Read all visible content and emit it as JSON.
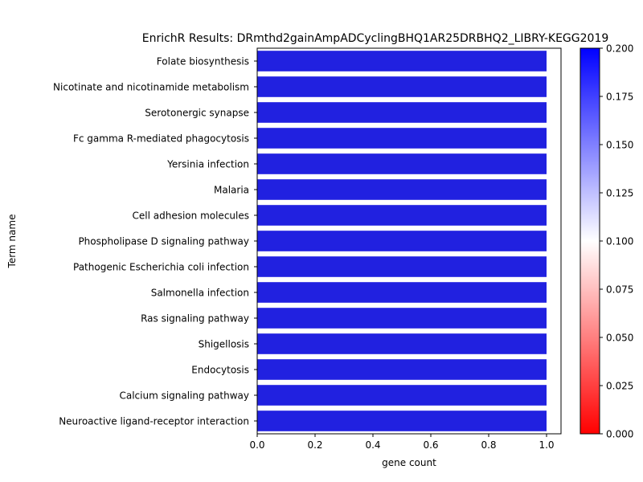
{
  "chart_data": {
    "type": "bar",
    "orientation": "horizontal",
    "title": "EnrichR Results: DRmthd2gainAmpADCyclingBHQ1AR25DRBHQ2_LIBRY-KEGG2019",
    "xlabel": "gene count",
    "ylabel": "Term name",
    "xlim": [
      0,
      1.05
    ],
    "xticks": [
      "0.0",
      "0.2",
      "0.4",
      "0.6",
      "0.8",
      "1.0"
    ],
    "categories": [
      "Folate biosynthesis",
      "Nicotinate and nicotinamide metabolism",
      "Serotonergic synapse",
      "Fc gamma R-mediated phagocytosis",
      "Yersinia infection",
      "Malaria",
      "Cell adhesion molecules",
      "Phospholipase D signaling pathway",
      "Pathogenic Escherichia coli infection",
      "Salmonella infection",
      "Ras signaling pathway",
      "Shigellosis",
      "Endocytosis",
      "Calcium signaling pathway",
      "Neuroactive ligand-receptor interaction"
    ],
    "values": [
      1,
      1,
      1,
      1,
      1,
      1,
      1,
      1,
      1,
      1,
      1,
      1,
      1,
      1,
      1
    ],
    "bar_color": "#2121e0",
    "colorbar": {
      "colormap": "bwr_r",
      "range": [
        0.0,
        0.2
      ],
      "ticks": [
        "0.000",
        "0.025",
        "0.050",
        "0.075",
        "0.100",
        "0.125",
        "0.150",
        "0.175",
        "0.200"
      ],
      "colors": {
        "low": "#ff0000",
        "mid": "#ffffff",
        "high": "#0000ff"
      }
    }
  }
}
